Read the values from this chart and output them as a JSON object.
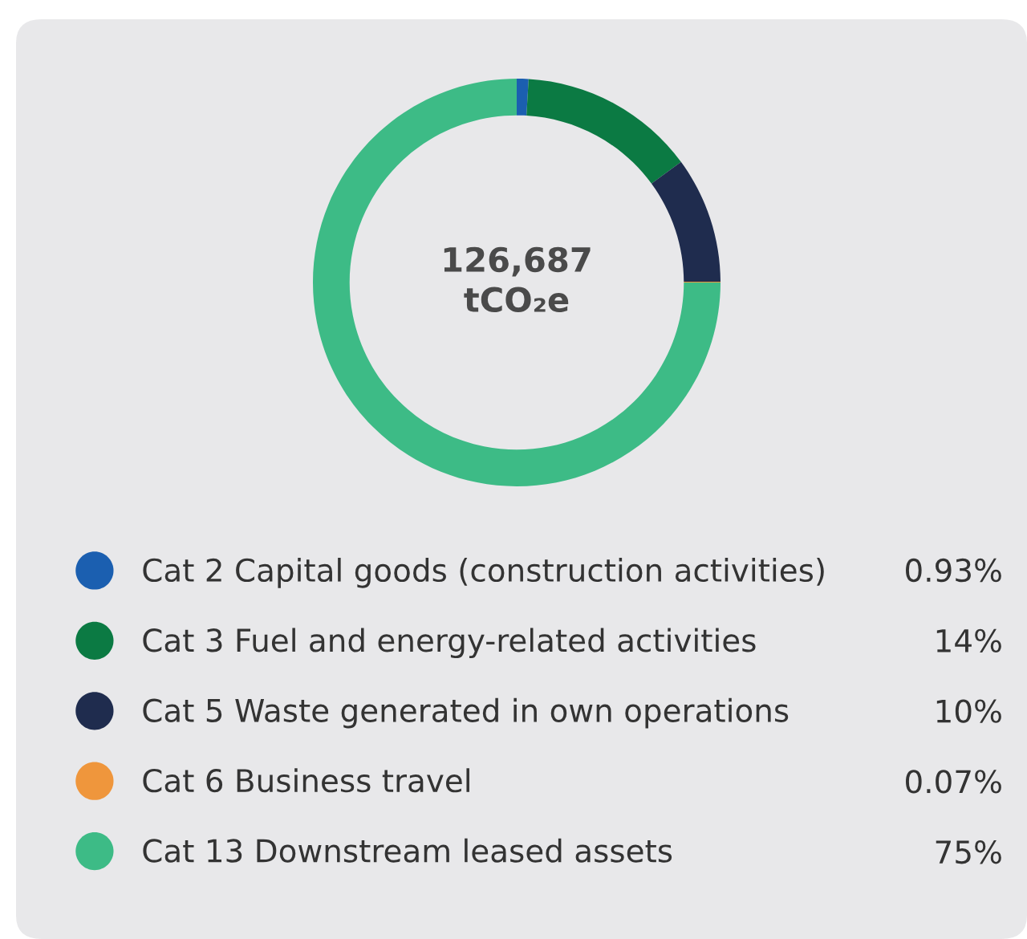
{
  "chart_data": {
    "type": "donut",
    "categories": [
      "Cat 2 Capital goods (construction activities)",
      "Cat 3 Fuel and energy-related activities",
      "Cat 5 Waste generated in own operations",
      "Cat 6 Business travel",
      "Cat 13 Downstream leased assets"
    ],
    "values": [
      0.93,
      14,
      10,
      0.07,
      75
    ],
    "colors": [
      "#1b5fb0",
      "#0b7a43",
      "#1f2c4e",
      "#ef963c",
      "#3dbb86"
    ],
    "value_labels": [
      "0.93%",
      "14%",
      "10%",
      "0.07%",
      "75%"
    ],
    "annotations": [
      "126,687\ntCO₂e"
    ],
    "legend": "bottom"
  }
}
